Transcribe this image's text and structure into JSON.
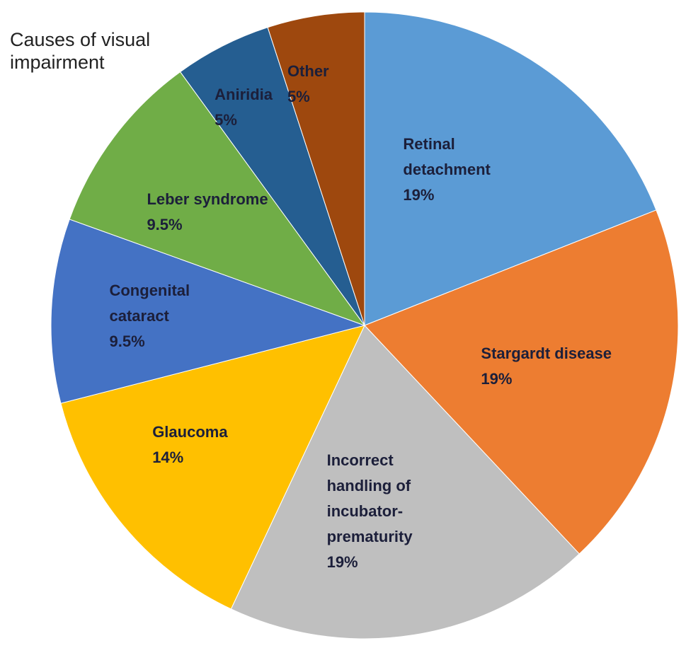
{
  "chart_data": {
    "type": "pie",
    "title": "Causes of visual impairment",
    "categories": [
      "Retinal detachment",
      "Stargardt disease",
      "Incorrect handling of incubator-prematurity",
      "Glaucoma",
      "Congenital cataract",
      "Leber syndrome",
      "Aniridia",
      "Other"
    ],
    "values": [
      19,
      19,
      19,
      14,
      9.5,
      9.5,
      5,
      5
    ],
    "value_labels": [
      "19%",
      "19%",
      "19%",
      "14%",
      "9.5%",
      "9.5%",
      "5%",
      "5%"
    ],
    "colors": [
      "#5b9bd5",
      "#ed7d31",
      "#bfbfbf",
      "#ffc000",
      "#4472c4",
      "#70ad47",
      "#255e91",
      "#9e480e"
    ]
  }
}
